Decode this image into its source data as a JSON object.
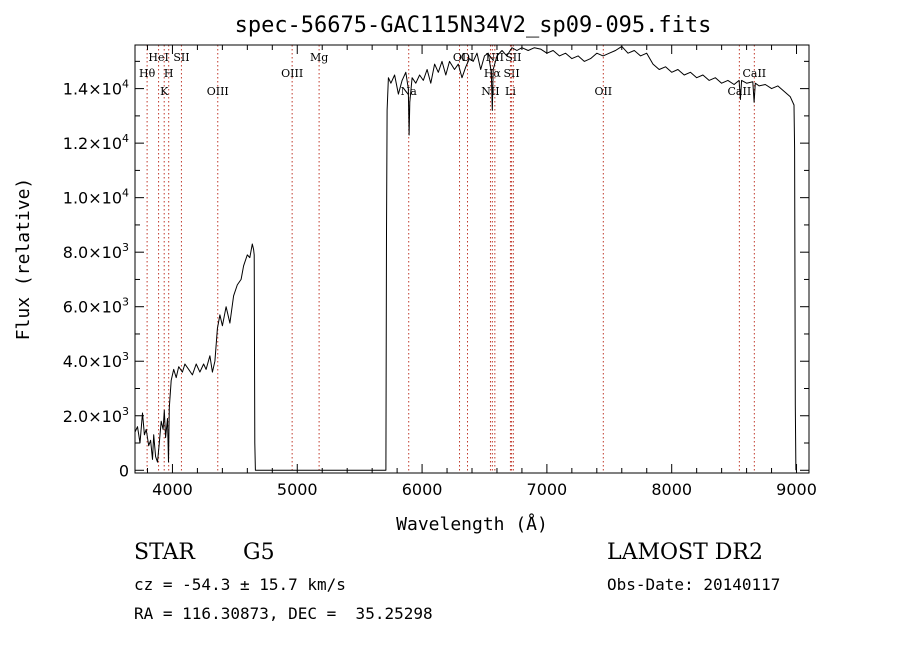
{
  "chart_data": {
    "type": "line",
    "title": "spec-56675-GAC115N34V2_sp09-095.fits",
    "xlabel": "Wavelength (Å)",
    "ylabel": "Flux (relative)",
    "xlim": [
      3700,
      9100
    ],
    "ylim": [
      -100,
      15600
    ],
    "grid": false,
    "x_ticks": [
      4000,
      5000,
      6000,
      7000,
      8000,
      9000
    ],
    "y_ticks": [
      {
        "value": 0,
        "mant": "0",
        "exp": ""
      },
      {
        "value": 2000,
        "mant": "2.0×10",
        "exp": "3"
      },
      {
        "value": 4000,
        "mant": "4.0×10",
        "exp": "3"
      },
      {
        "value": 6000,
        "mant": "6.0×10",
        "exp": "3"
      },
      {
        "value": 8000,
        "mant": "8.0×10",
        "exp": "3"
      },
      {
        "value": 10000,
        "mant": "1.0×10",
        "exp": "4"
      },
      {
        "value": 12000,
        "mant": "1.2×10",
        "exp": "4"
      },
      {
        "value": 14000,
        "mant": "1.4×10",
        "exp": "4"
      }
    ],
    "series": [
      {
        "color": "#000000",
        "points": [
          [
            3700,
            1400
          ],
          [
            3720,
            1600
          ],
          [
            3740,
            1000
          ],
          [
            3760,
            2100
          ],
          [
            3775,
            1300
          ],
          [
            3790,
            1500
          ],
          [
            3810,
            900
          ],
          [
            3825,
            1100
          ],
          [
            3840,
            400
          ],
          [
            3850,
            1300
          ],
          [
            3865,
            500
          ],
          [
            3880,
            300
          ],
          [
            3895,
            1000
          ],
          [
            3910,
            1800
          ],
          [
            3925,
            1500
          ],
          [
            3935,
            2200
          ],
          [
            3945,
            1200
          ],
          [
            3960,
            1900
          ],
          [
            3968,
            300
          ],
          [
            3975,
            2300
          ],
          [
            3990,
            3300
          ],
          [
            4010,
            3700
          ],
          [
            4030,
            3400
          ],
          [
            4050,
            3800
          ],
          [
            4080,
            3600
          ],
          [
            4100,
            3900
          ],
          [
            4130,
            3700
          ],
          [
            4160,
            3500
          ],
          [
            4190,
            3900
          ],
          [
            4220,
            3600
          ],
          [
            4250,
            3900
          ],
          [
            4270,
            3700
          ],
          [
            4300,
            4200
          ],
          [
            4320,
            3600
          ],
          [
            4340,
            4000
          ],
          [
            4360,
            5200
          ],
          [
            4380,
            5700
          ],
          [
            4400,
            5300
          ],
          [
            4430,
            6000
          ],
          [
            4460,
            5400
          ],
          [
            4490,
            6400
          ],
          [
            4520,
            6800
          ],
          [
            4550,
            7000
          ],
          [
            4570,
            7500
          ],
          [
            4600,
            7900
          ],
          [
            4620,
            7800
          ],
          [
            4640,
            8300
          ],
          [
            4650,
            8100
          ],
          [
            4655,
            7900
          ],
          [
            4660,
            1000
          ],
          [
            4665,
            0
          ],
          [
            5700,
            0
          ],
          [
            5710,
            0
          ],
          [
            5715,
            8700
          ],
          [
            5720,
            13200
          ],
          [
            5730,
            14400
          ],
          [
            5750,
            14200
          ],
          [
            5780,
            14500
          ],
          [
            5810,
            13800
          ],
          [
            5840,
            14300
          ],
          [
            5870,
            14600
          ],
          [
            5890,
            14000
          ],
          [
            5896,
            12300
          ],
          [
            5902,
            13500
          ],
          [
            5920,
            14400
          ],
          [
            5950,
            14200
          ],
          [
            5980,
            14500
          ],
          [
            6010,
            14300
          ],
          [
            6040,
            14700
          ],
          [
            6070,
            14200
          ],
          [
            6100,
            14900
          ],
          [
            6130,
            14600
          ],
          [
            6160,
            15000
          ],
          [
            6190,
            14500
          ],
          [
            6220,
            15000
          ],
          [
            6260,
            14700
          ],
          [
            6290,
            14900
          ],
          [
            6320,
            14400
          ],
          [
            6350,
            14800
          ],
          [
            6380,
            15100
          ],
          [
            6410,
            15000
          ],
          [
            6440,
            15300
          ],
          [
            6470,
            14700
          ],
          [
            6500,
            15200
          ],
          [
            6530,
            15300
          ],
          [
            6555,
            14600
          ],
          [
            6563,
            13200
          ],
          [
            6570,
            14700
          ],
          [
            6600,
            15200
          ],
          [
            6640,
            15400
          ],
          [
            6680,
            15200
          ],
          [
            6720,
            15500
          ],
          [
            6760,
            15400
          ],
          [
            6800,
            15500
          ],
          [
            6850,
            15400
          ],
          [
            6900,
            15500
          ],
          [
            6950,
            15450
          ],
          [
            7000,
            15300
          ],
          [
            7050,
            15400
          ],
          [
            7100,
            15200
          ],
          [
            7150,
            15300
          ],
          [
            7200,
            15100
          ],
          [
            7250,
            15200
          ],
          [
            7300,
            15000
          ],
          [
            7350,
            15100
          ],
          [
            7400,
            15300
          ],
          [
            7450,
            15200
          ],
          [
            7500,
            15300
          ],
          [
            7550,
            15400
          ],
          [
            7600,
            15550
          ],
          [
            7650,
            15300
          ],
          [
            7700,
            15400
          ],
          [
            7750,
            15200
          ],
          [
            7800,
            15300
          ],
          [
            7850,
            14900
          ],
          [
            7900,
            14700
          ],
          [
            7950,
            14800
          ],
          [
            8000,
            14600
          ],
          [
            8050,
            14700
          ],
          [
            8100,
            14500
          ],
          [
            8150,
            14600
          ],
          [
            8200,
            14400
          ],
          [
            8250,
            14500
          ],
          [
            8300,
            14300
          ],
          [
            8350,
            14400
          ],
          [
            8400,
            14200
          ],
          [
            8450,
            14300
          ],
          [
            8500,
            14150
          ],
          [
            8540,
            14300
          ],
          [
            8550,
            13600
          ],
          [
            8560,
            14300
          ],
          [
            8600,
            14200
          ],
          [
            8650,
            14250
          ],
          [
            8660,
            13500
          ],
          [
            8670,
            14200
          ],
          [
            8700,
            14100
          ],
          [
            8750,
            14150
          ],
          [
            8800,
            14000
          ],
          [
            8850,
            14100
          ],
          [
            8900,
            13900
          ],
          [
            8950,
            13700
          ],
          [
            8980,
            13400
          ],
          [
            8985,
            11800
          ],
          [
            8990,
            2400
          ],
          [
            8995,
            0
          ]
        ]
      }
    ],
    "lines": [
      {
        "x": 3797,
        "label": "Hθ",
        "row": 1
      },
      {
        "x": 3889,
        "label": "HeI",
        "row": 0
      },
      {
        "x": 3934,
        "label": "K",
        "row": 2
      },
      {
        "x": 3970,
        "label": "H",
        "row": 1
      },
      {
        "x": 4072,
        "label": "SII",
        "row": 0
      },
      {
        "x": 4363,
        "label": "OIII",
        "row": 2
      },
      {
        "x": 4959,
        "label": "OIII",
        "row": 1
      },
      {
        "x": 5175,
        "label": "Mg",
        "row": 0
      },
      {
        "x": 5893,
        "label": "Na",
        "row": 2
      },
      {
        "x": 6300,
        "label": "OI",
        "row": 0
      },
      {
        "x": 6364,
        "label": "OI",
        "row": 0
      },
      {
        "x": 6548,
        "label": "NII",
        "row": 2
      },
      {
        "x": 6563,
        "label": "Hα",
        "row": 1
      },
      {
        "x": 6583,
        "label": "NII",
        "row": 0
      },
      {
        "x": 6708,
        "label": "Li",
        "row": 2
      },
      {
        "x": 6717,
        "label": "SII",
        "row": 1
      },
      {
        "x": 6731,
        "label": "SII",
        "row": 0
      },
      {
        "x": 7452,
        "label": "OII",
        "row": 2
      },
      {
        "x": 8542,
        "label": "CaII",
        "row": 2
      },
      {
        "x": 8662,
        "label": "CaII",
        "row": 1
      }
    ],
    "line_color": "#c0392b"
  },
  "info": {
    "object_class": "STAR",
    "subclass": "G5",
    "survey": "LAMOST DR2",
    "cz": "cz = -54.3 ± 15.7 km/s",
    "obs_date": "Obs-Date: 20140117",
    "coords": "RA = 116.30873, DEC =  35.25298"
  }
}
